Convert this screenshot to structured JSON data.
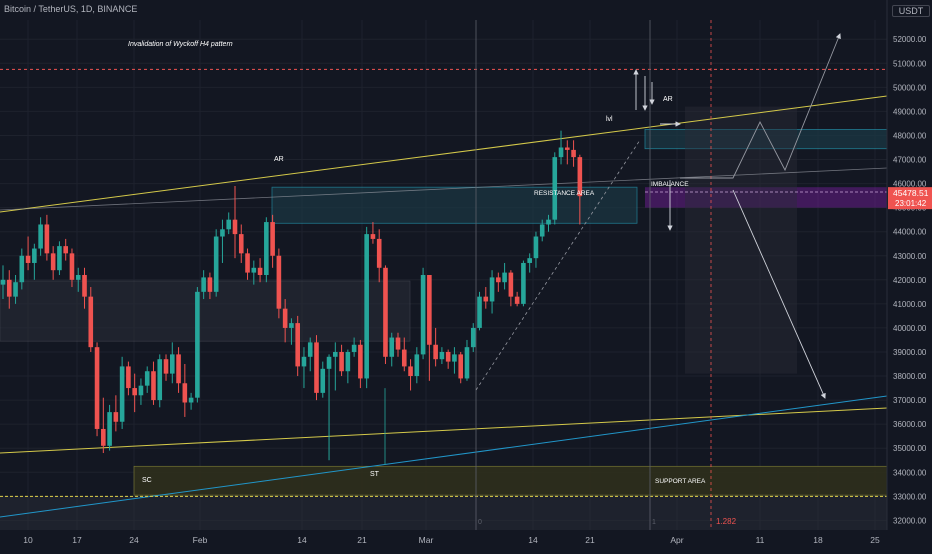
{
  "header": {
    "symbol": "Bitcoin / TetherUS, 1D, BINANCE",
    "currency": "USDT"
  },
  "colors": {
    "background": "#131722",
    "grid": "#1e222d",
    "up": "#26a69a",
    "down": "#ef5350",
    "trendline_yellow": "#d4c94a",
    "trendline_blue": "#2196c9",
    "resistance_fill": "#1b3a46",
    "support_fill": "#2e2f1c",
    "imbalance": "#7b1fa2",
    "text": "#b2b5be"
  },
  "chart_data": {
    "type": "candlestick",
    "y_ticks": [
      "52000.00",
      "51000.00",
      "50000.00",
      "49000.00",
      "48000.00",
      "47000.00",
      "46000.00",
      "45000.00",
      "44000.00",
      "43000.00",
      "42000.00",
      "41000.00",
      "40000.00",
      "39000.00",
      "38000.00",
      "37000.00",
      "36000.00",
      "35000.00",
      "34000.00",
      "33000.00",
      "32000.00"
    ],
    "x_ticks": [
      "10",
      "17",
      "24",
      "Feb",
      "14",
      "21",
      "Mar",
      "14",
      "21",
      "Apr",
      "11",
      "18",
      "25"
    ],
    "ylim": [
      31600,
      52800
    ],
    "last_price": {
      "value": "45478.51",
      "countdown": "23:01:42"
    },
    "fib_label": "1.282",
    "day_markers": [
      "0",
      "1"
    ],
    "annotations": {
      "invalidation": "Invalidation of Wyckoff H4 pattern",
      "ar_top": "AR",
      "ar_left": "AR",
      "lvl": "lvl",
      "resistance": "RESISTANCE AREA",
      "imbalance": "IMBALANCE",
      "sc": "SC",
      "st": "ST",
      "support": "SUPPORT AREA"
    },
    "candles": [
      [
        41800,
        42600,
        41200,
        42000
      ],
      [
        42000,
        42400,
        40800,
        41300
      ],
      [
        41300,
        42200,
        41000,
        41900
      ],
      [
        41900,
        43300,
        41600,
        43000
      ],
      [
        43000,
        43800,
        42400,
        42700
      ],
      [
        42700,
        43500,
        42000,
        43300
      ],
      [
        43300,
        44600,
        43000,
        44300
      ],
      [
        44300,
        44700,
        42800,
        43100
      ],
      [
        43100,
        43400,
        42000,
        42400
      ],
      [
        42400,
        43600,
        42200,
        43400
      ],
      [
        43400,
        43700,
        42800,
        43100
      ],
      [
        43100,
        43300,
        41700,
        42000
      ],
      [
        42000,
        42500,
        41500,
        42200
      ],
      [
        42200,
        42500,
        40800,
        41300
      ],
      [
        41300,
        41700,
        39000,
        39200
      ],
      [
        39200,
        39400,
        35500,
        35800
      ],
      [
        35800,
        37100,
        34800,
        35100
      ],
      [
        35100,
        36800,
        34900,
        36500
      ],
      [
        36500,
        37200,
        35700,
        36100
      ],
      [
        36100,
        38800,
        35800,
        38400
      ],
      [
        38400,
        38600,
        37200,
        37500
      ],
      [
        37500,
        38100,
        36500,
        37200
      ],
      [
        37200,
        37900,
        36800,
        37600
      ],
      [
        37600,
        38400,
        37300,
        38200
      ],
      [
        38200,
        38600,
        36800,
        37000
      ],
      [
        37000,
        38900,
        36700,
        38700
      ],
      [
        38700,
        38900,
        37800,
        38100
      ],
      [
        38100,
        39400,
        37700,
        38900
      ],
      [
        38900,
        39200,
        37300,
        37700
      ],
      [
        37700,
        38500,
        36300,
        36900
      ],
      [
        36900,
        37300,
        36600,
        37100
      ],
      [
        37100,
        41700,
        36900,
        41500
      ],
      [
        41500,
        42400,
        41200,
        42100
      ],
      [
        42100,
        42300,
        41200,
        41500
      ],
      [
        41500,
        44100,
        41300,
        43800
      ],
      [
        43800,
        44500,
        42700,
        44100
      ],
      [
        44100,
        44800,
        43900,
        44500
      ],
      [
        44500,
        45900,
        42900,
        43900
      ],
      [
        43900,
        44300,
        42700,
        43100
      ],
      [
        43100,
        43300,
        42000,
        42300
      ],
      [
        42300,
        42800,
        41800,
        42500
      ],
      [
        42500,
        42900,
        41900,
        42200
      ],
      [
        42200,
        44600,
        41900,
        44400
      ],
      [
        44400,
        44700,
        42500,
        43000
      ],
      [
        43000,
        43300,
        40400,
        40800
      ],
      [
        40800,
        41200,
        39400,
        40000
      ],
      [
        40000,
        40400,
        39300,
        40200
      ],
      [
        40200,
        40500,
        38000,
        38400
      ],
      [
        38400,
        39200,
        37500,
        38800
      ],
      [
        38800,
        39600,
        38200,
        39400
      ],
      [
        39400,
        39700,
        37000,
        37300
      ],
      [
        37300,
        38600,
        37100,
        38300
      ],
      [
        38300,
        38900,
        34500,
        38800
      ],
      [
        38800,
        39400,
        37400,
        39000
      ],
      [
        39000,
        39300,
        38000,
        38200
      ],
      [
        38200,
        39100,
        37700,
        39000
      ],
      [
        39000,
        39600,
        38800,
        39300
      ],
      [
        39300,
        39500,
        37500,
        37900
      ],
      [
        37900,
        44200,
        37500,
        43900
      ],
      [
        43900,
        44400,
        43500,
        43700
      ],
      [
        43700,
        44100,
        41900,
        42500
      ],
      [
        42500,
        42600,
        38500,
        38800
      ],
      [
        38800,
        39800,
        38400,
        39600
      ],
      [
        39600,
        39800,
        38800,
        39100
      ],
      [
        39100,
        39600,
        38200,
        38400
      ],
      [
        38400,
        38700,
        37400,
        38000
      ],
      [
        38000,
        39200,
        37700,
        38900
      ],
      [
        38900,
        42500,
        38700,
        42200
      ],
      [
        42200,
        42200,
        37800,
        39300
      ],
      [
        39300,
        40000,
        38400,
        38700
      ],
      [
        38700,
        39200,
        38500,
        39000
      ],
      [
        39000,
        39100,
        38300,
        38600
      ],
      [
        38600,
        39200,
        38100,
        38900
      ],
      [
        38900,
        39000,
        37700,
        37900
      ],
      [
        37900,
        39500,
        37800,
        39200
      ],
      [
        39200,
        40200,
        39000,
        40000
      ],
      [
        40000,
        41500,
        39900,
        41300
      ],
      [
        41300,
        41700,
        40800,
        41100
      ],
      [
        41100,
        42400,
        40600,
        42100
      ],
      [
        42100,
        42300,
        41500,
        41900
      ],
      [
        41900,
        42700,
        41600,
        42300
      ],
      [
        42300,
        42400,
        40900,
        41300
      ],
      [
        41300,
        41500,
        40900,
        41000
      ],
      [
        41000,
        42800,
        40900,
        42700
      ],
      [
        42700,
        43100,
        42300,
        42900
      ],
      [
        42900,
        44000,
        42500,
        43800
      ],
      [
        43800,
        44500,
        43600,
        44300
      ],
      [
        44300,
        44700,
        44000,
        44500
      ],
      [
        44500,
        47300,
        44300,
        47100
      ],
      [
        47100,
        48200,
        46800,
        47500
      ],
      [
        47500,
        47800,
        46800,
        47400
      ],
      [
        47400,
        47800,
        46700,
        47100
      ],
      [
        47100,
        47200,
        44300,
        45478
      ]
    ]
  }
}
